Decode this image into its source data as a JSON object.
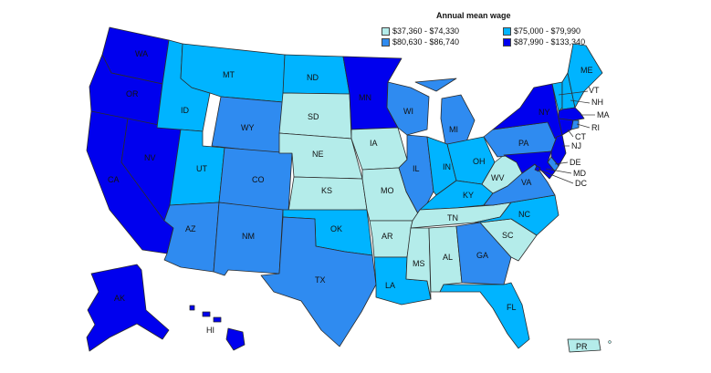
{
  "legend": {
    "title": "Annual mean wage",
    "items": [
      {
        "label": "$37,360 - $74,330",
        "color": "#b4ecea"
      },
      {
        "label": "$75,000 - $79,990",
        "color": "#00b4ff"
      },
      {
        "label": "$80,630 - $86,740",
        "color": "#2f8bf0"
      },
      {
        "label": "$87,990 - $133,340",
        "color": "#0000ee"
      }
    ]
  },
  "states": {
    "WA": {
      "label": "WA",
      "cls": 3
    },
    "OR": {
      "label": "OR",
      "cls": 3
    },
    "CA": {
      "label": "CA",
      "cls": 3
    },
    "NV": {
      "label": "NV",
      "cls": 3
    },
    "ID": {
      "label": "ID",
      "cls": 1
    },
    "MT": {
      "label": "MT",
      "cls": 1
    },
    "WY": {
      "label": "WY",
      "cls": 2
    },
    "UT": {
      "label": "UT",
      "cls": 1
    },
    "CO": {
      "label": "CO",
      "cls": 2
    },
    "AZ": {
      "label": "AZ",
      "cls": 2
    },
    "NM": {
      "label": "NM",
      "cls": 2
    },
    "ND": {
      "label": "ND",
      "cls": 1
    },
    "SD": {
      "label": "SD",
      "cls": 0
    },
    "NE": {
      "label": "NE",
      "cls": 0
    },
    "KS": {
      "label": "KS",
      "cls": 0
    },
    "OK": {
      "label": "OK",
      "cls": 1
    },
    "TX": {
      "label": "TX",
      "cls": 2
    },
    "MN": {
      "label": "MN",
      "cls": 3
    },
    "IA": {
      "label": "IA",
      "cls": 0
    },
    "MO": {
      "label": "MO",
      "cls": 0
    },
    "AR": {
      "label": "AR",
      "cls": 0
    },
    "LA": {
      "label": "LA",
      "cls": 1
    },
    "WI": {
      "label": "WI",
      "cls": 2
    },
    "IL": {
      "label": "IL",
      "cls": 2
    },
    "MI": {
      "label": "MI",
      "cls": 2
    },
    "IN": {
      "label": "IN",
      "cls": 1
    },
    "OH": {
      "label": "OH",
      "cls": 1
    },
    "KY": {
      "label": "KY",
      "cls": 1
    },
    "TN": {
      "label": "TN",
      "cls": 0
    },
    "MS": {
      "label": "MS",
      "cls": 0
    },
    "AL": {
      "label": "AL",
      "cls": 0
    },
    "GA": {
      "label": "GA",
      "cls": 2
    },
    "FL": {
      "label": "FL",
      "cls": 1
    },
    "SC": {
      "label": "SC",
      "cls": 0
    },
    "NC": {
      "label": "NC",
      "cls": 1
    },
    "VA": {
      "label": "VA",
      "cls": 2
    },
    "WV": {
      "label": "WV",
      "cls": 0
    },
    "PA": {
      "label": "PA",
      "cls": 2
    },
    "NY": {
      "label": "NY",
      "cls": 3
    },
    "VT": {
      "label": "VT",
      "cls": 1
    },
    "NH": {
      "label": "NH",
      "cls": 1
    },
    "ME": {
      "label": "ME",
      "cls": 1
    },
    "MA": {
      "label": "MA",
      "cls": 3
    },
    "RI": {
      "label": "RI",
      "cls": 2
    },
    "CT": {
      "label": "CT",
      "cls": 3
    },
    "NJ": {
      "label": "NJ",
      "cls": 3
    },
    "DE": {
      "label": "DE",
      "cls": 2
    },
    "MD": {
      "label": "MD",
      "cls": 3
    },
    "DC": {
      "label": "DC",
      "cls": 3
    },
    "AK": {
      "label": "AK",
      "cls": 3
    },
    "HI": {
      "label": "HI",
      "cls": 3
    },
    "PR": {
      "label": "PR",
      "cls": 0
    }
  }
}
